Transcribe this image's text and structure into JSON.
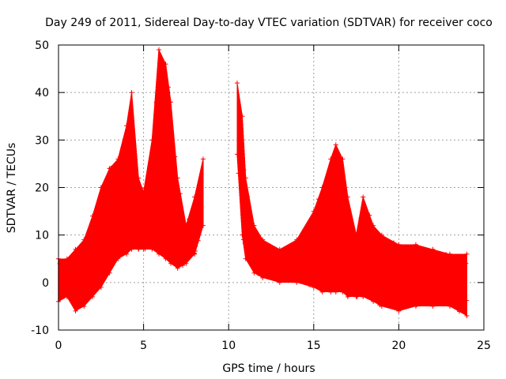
{
  "chart_data": {
    "type": "scatter",
    "title": "Day 249 of 2011, Sidereal Day-to-day VTEC variation (SDTVAR) for receiver coco",
    "xlabel": "GPS time / hours",
    "ylabel": "SDTVAR / TECUs",
    "xlim": [
      0,
      25
    ],
    "ylim": [
      -10,
      50
    ],
    "xticks": [
      0,
      5,
      10,
      15,
      20,
      25
    ],
    "yticks": [
      -10,
      0,
      10,
      20,
      30,
      40,
      50
    ],
    "grid": true,
    "marker": "plus-with-errorbars",
    "color": "#ff0000",
    "series": [
      {
        "name": "SDTVAR",
        "approx_envelope": [
          {
            "x": 0.0,
            "lo": -4,
            "hi": 5
          },
          {
            "x": 0.5,
            "lo": -3,
            "hi": 5
          },
          {
            "x": 1.0,
            "lo": -6,
            "hi": 7
          },
          {
            "x": 1.5,
            "lo": -5,
            "hi": 9
          },
          {
            "x": 2.0,
            "lo": -3,
            "hi": 14
          },
          {
            "x": 2.5,
            "lo": -1,
            "hi": 20
          },
          {
            "x": 3.0,
            "lo": 2,
            "hi": 24
          },
          {
            "x": 3.5,
            "lo": 5,
            "hi": 26
          },
          {
            "x": 4.0,
            "lo": 6,
            "hi": 33
          },
          {
            "x": 4.3,
            "lo": 7,
            "hi": 40
          },
          {
            "x": 4.7,
            "lo": 7,
            "hi": 22
          },
          {
            "x": 5.0,
            "lo": 7,
            "hi": 19
          },
          {
            "x": 5.5,
            "lo": 7,
            "hi": 30
          },
          {
            "x": 5.9,
            "lo": 6,
            "hi": 49
          },
          {
            "x": 6.3,
            "lo": 5,
            "hi": 46
          },
          {
            "x": 6.6,
            "lo": 4,
            "hi": 38
          },
          {
            "x": 7.0,
            "lo": 3,
            "hi": 22
          },
          {
            "x": 7.5,
            "lo": 4,
            "hi": 12
          },
          {
            "x": 8.0,
            "lo": 6,
            "hi": 18
          },
          {
            "x": 8.5,
            "lo": 12,
            "hi": 26
          },
          {
            "x": 10.5,
            "lo": 27,
            "hi": 42
          },
          {
            "x": 10.8,
            "lo": 10,
            "hi": 35
          },
          {
            "x": 11.0,
            "lo": 5,
            "hi": 22
          },
          {
            "x": 11.5,
            "lo": 2,
            "hi": 12
          },
          {
            "x": 12.0,
            "lo": 1,
            "hi": 9
          },
          {
            "x": 13.0,
            "lo": 0,
            "hi": 7
          },
          {
            "x": 14.0,
            "lo": 0,
            "hi": 9
          },
          {
            "x": 15.0,
            "lo": -1,
            "hi": 15
          },
          {
            "x": 15.5,
            "lo": -2,
            "hi": 20
          },
          {
            "x": 16.0,
            "lo": -2,
            "hi": 26
          },
          {
            "x": 16.3,
            "lo": -2,
            "hi": 29
          },
          {
            "x": 16.7,
            "lo": -2,
            "hi": 26
          },
          {
            "x": 17.0,
            "lo": -3,
            "hi": 18
          },
          {
            "x": 17.5,
            "lo": -3,
            "hi": 10
          },
          {
            "x": 17.9,
            "lo": -3,
            "hi": 18
          },
          {
            "x": 18.5,
            "lo": -4,
            "hi": 12
          },
          {
            "x": 19.0,
            "lo": -5,
            "hi": 10
          },
          {
            "x": 20.0,
            "lo": -6,
            "hi": 8
          },
          {
            "x": 21.0,
            "lo": -5,
            "hi": 8
          },
          {
            "x": 22.0,
            "lo": -5,
            "hi": 7
          },
          {
            "x": 23.0,
            "lo": -5,
            "hi": 6
          },
          {
            "x": 24.0,
            "lo": -7,
            "hi": 6
          }
        ]
      }
    ]
  }
}
